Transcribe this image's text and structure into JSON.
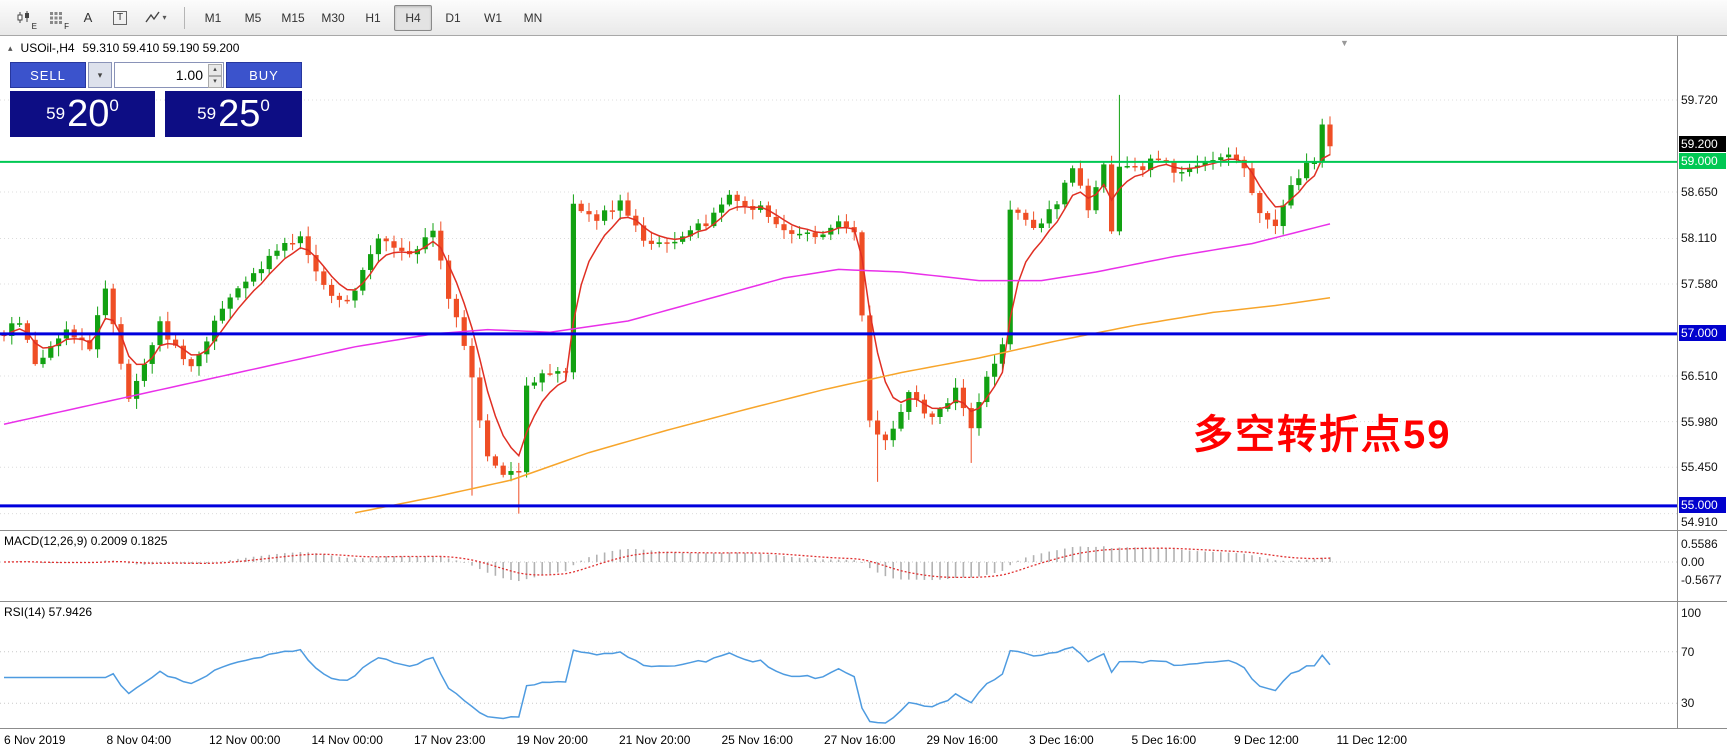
{
  "toolbar": {
    "tools": [
      {
        "id": "indicator-tool",
        "badge": "E"
      },
      {
        "id": "grid-tool",
        "badge": "F"
      },
      {
        "id": "text-tool",
        "label": "A"
      },
      {
        "id": "template-tool",
        "label": "T"
      },
      {
        "id": "line-studies-tool",
        "caret": "▾"
      }
    ],
    "timeframes": [
      "M1",
      "M5",
      "M15",
      "M30",
      "H1",
      "H4",
      "D1",
      "W1",
      "MN"
    ],
    "selected_timeframe": "H4"
  },
  "chart_header": {
    "collapse_icon": "▴",
    "symbol_period": "USOil-,H4",
    "quotes": "59.310 59.410 59.190 59.200"
  },
  "markers": {
    "shift_marker": "▼"
  },
  "trade_panel": {
    "sell_label": "SELL",
    "buy_label": "BUY",
    "volume": "1.00",
    "sell_price": {
      "small": "59",
      "big": "20",
      "sup": "0"
    },
    "buy_price": {
      "small": "59",
      "big": "25",
      "sup": "0"
    }
  },
  "annotation": {
    "text": "多空转折点59",
    "color": "#ff0000"
  },
  "price_axis": {
    "labels": [
      {
        "label": "59.720",
        "price": 59.72,
        "type": "plain"
      },
      {
        "label": "59.200",
        "price": 59.2,
        "type": "current"
      },
      {
        "label": "59.000",
        "price": 59.0,
        "type": "green"
      },
      {
        "label": "58.650",
        "price": 58.65,
        "type": "plain"
      },
      {
        "label": "58.110",
        "price": 58.11,
        "type": "plain"
      },
      {
        "label": "57.580",
        "price": 57.58,
        "type": "plain"
      },
      {
        "label": "57.000",
        "price": 57.0,
        "type": "blue"
      },
      {
        "label": "56.510",
        "price": 56.51,
        "type": "plain"
      },
      {
        "label": "55.980",
        "price": 55.98,
        "type": "plain"
      },
      {
        "label": "55.450",
        "price": 55.45,
        "type": "plain"
      },
      {
        "label": "55.000",
        "price": 55.0,
        "type": "blue"
      },
      {
        "label": "54.910",
        "price": 54.91,
        "type": "plain",
        "offset": 8
      }
    ]
  },
  "macd_panel": {
    "label": "MACD(12,26,9) 0.2009 0.1825",
    "axis": [
      {
        "label": "0.5586",
        "v": 0.5586
      },
      {
        "label": "0.00",
        "v": 0
      },
      {
        "label": "-0.5677",
        "v": -0.5677
      }
    ]
  },
  "rsi_panel": {
    "label": "RSI(14) 57.9426",
    "axis": [
      {
        "label": "100",
        "v": 100
      },
      {
        "label": "70",
        "v": 70
      },
      {
        "label": "30",
        "v": 30
      }
    ]
  },
  "time_axis": {
    "labels": [
      "6 Nov 2019",
      "8 Nov 04:00",
      "12 Nov 00:00",
      "14 Nov 00:00",
      "17 Nov 23:00",
      "19 Nov 20:00",
      "21 Nov 20:00",
      "25 Nov 16:00",
      "27 Nov 16:00",
      "29 Nov 16:00",
      "3 Dec 16:00",
      "5 Dec 16:00",
      "9 Dec 12:00",
      "11 Dec 12:00"
    ]
  },
  "chart_data": {
    "type": "candlestick",
    "symbol": "USOil-",
    "period": "H4",
    "ohlc_quote": {
      "open": 59.31,
      "high": 59.41,
      "low": 59.19,
      "close": 59.2
    },
    "price_range": [
      54.91,
      59.72
    ],
    "candles_count": 171,
    "close_waypoints": [
      [
        0,
        57.0
      ],
      [
        2,
        57.15
      ],
      [
        4,
        56.65
      ],
      [
        8,
        57.05
      ],
      [
        11,
        56.85
      ],
      [
        13,
        57.55
      ],
      [
        16,
        56.25
      ],
      [
        20,
        57.1
      ],
      [
        24,
        56.6
      ],
      [
        28,
        57.3
      ],
      [
        33,
        57.8
      ],
      [
        38,
        58.15
      ],
      [
        41,
        57.55
      ],
      [
        44,
        57.35
      ],
      [
        48,
        58.15
      ],
      [
        52,
        57.95
      ],
      [
        55,
        58.2
      ],
      [
        57,
        57.45
      ],
      [
        59,
        56.9
      ],
      [
        61,
        56.0
      ],
      [
        62,
        55.6
      ],
      [
        64,
        55.4
      ],
      [
        66,
        55.35
      ],
      [
        67,
        56.4
      ],
      [
        70,
        56.55
      ],
      [
        72,
        56.6
      ],
      [
        73,
        58.5
      ],
      [
        76,
        58.35
      ],
      [
        79,
        58.55
      ],
      [
        82,
        58.1
      ],
      [
        86,
        58.05
      ],
      [
        90,
        58.3
      ],
      [
        93,
        58.6
      ],
      [
        97,
        58.45
      ],
      [
        100,
        58.2
      ],
      [
        104,
        58.15
      ],
      [
        107,
        58.3
      ],
      [
        109,
        58.15
      ],
      [
        110,
        57.2
      ],
      [
        111,
        55.95
      ],
      [
        113,
        55.75
      ],
      [
        116,
        56.3
      ],
      [
        119,
        56.0
      ],
      [
        122,
        56.35
      ],
      [
        124,
        55.9
      ],
      [
        126,
        56.5
      ],
      [
        128,
        56.9
      ],
      [
        129,
        58.45
      ],
      [
        132,
        58.2
      ],
      [
        135,
        58.55
      ],
      [
        137,
        58.95
      ],
      [
        139,
        58.4
      ],
      [
        141,
        58.95
      ],
      [
        142,
        58.15
      ],
      [
        143,
        58.95
      ],
      [
        145,
        58.9
      ],
      [
        148,
        59.05
      ],
      [
        151,
        58.85
      ],
      [
        154,
        59.0
      ],
      [
        157,
        59.1
      ],
      [
        159,
        58.95
      ],
      [
        161,
        58.4
      ],
      [
        163,
        58.25
      ],
      [
        165,
        58.75
      ],
      [
        167,
        58.95
      ],
      [
        168,
        59.0
      ],
      [
        169,
        59.4
      ],
      [
        170,
        59.2
      ]
    ],
    "spikes": [
      {
        "i": 60,
        "low": 55.12
      },
      {
        "i": 66,
        "low": 54.91
      },
      {
        "i": 112,
        "low": 55.28
      },
      {
        "i": 124,
        "low": 55.5
      },
      {
        "i": 143,
        "high": 59.78
      }
    ],
    "levels": [
      {
        "price": 59.0,
        "color": "#00c853",
        "width": 2
      },
      {
        "price": 57.0,
        "color": "#0000dd",
        "width": 3
      },
      {
        "price": 55.0,
        "color": "#0000dd",
        "width": 3
      }
    ],
    "ma_magenta_waypoints": [
      [
        0,
        55.95
      ],
      [
        15,
        56.25
      ],
      [
        30,
        56.55
      ],
      [
        45,
        56.85
      ],
      [
        55,
        57.0
      ],
      [
        62,
        57.05
      ],
      [
        70,
        57.02
      ],
      [
        80,
        57.15
      ],
      [
        90,
        57.4
      ],
      [
        100,
        57.65
      ],
      [
        107,
        57.75
      ],
      [
        115,
        57.72
      ],
      [
        125,
        57.62
      ],
      [
        133,
        57.62
      ],
      [
        140,
        57.72
      ],
      [
        150,
        57.9
      ],
      [
        160,
        58.05
      ],
      [
        170,
        58.28
      ]
    ],
    "ma_orange_waypoints": [
      [
        45,
        54.92
      ],
      [
        55,
        55.1
      ],
      [
        65,
        55.3
      ],
      [
        75,
        55.62
      ],
      [
        85,
        55.88
      ],
      [
        95,
        56.12
      ],
      [
        105,
        56.35
      ],
      [
        115,
        56.55
      ],
      [
        125,
        56.72
      ],
      [
        135,
        56.92
      ],
      [
        145,
        57.1
      ],
      [
        155,
        57.25
      ],
      [
        163,
        57.33
      ],
      [
        170,
        57.42
      ]
    ],
    "colors": {
      "up": "#12a112",
      "down": "#ef4e25",
      "ma_fast": "#e02f23",
      "ma_mid": "#e930e9",
      "ma_slow": "#f7a52b",
      "rsi": "#4e9be0",
      "macd_hist": "#b2b2b2",
      "macd_signal": "#e03030"
    },
    "indicators": {
      "macd": {
        "params": "12,26,9",
        "values": [
          0.2009,
          0.1825
        ]
      },
      "rsi": {
        "params": "14",
        "value": 57.9426
      }
    }
  }
}
